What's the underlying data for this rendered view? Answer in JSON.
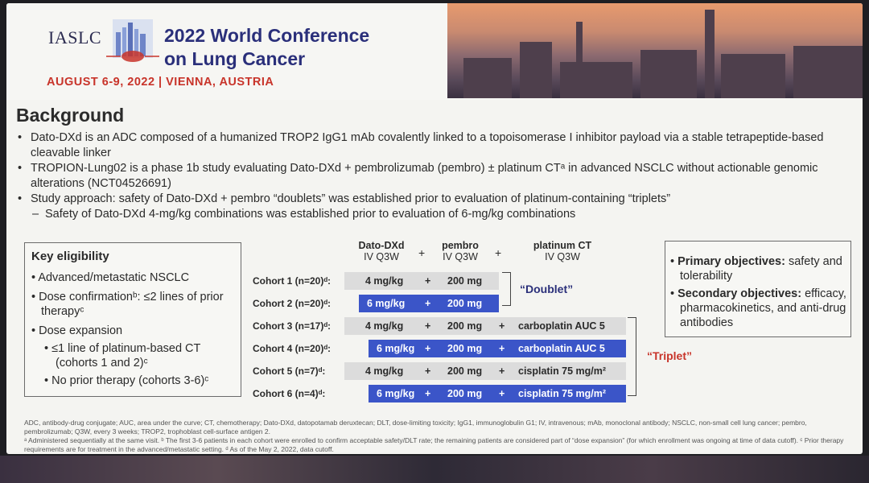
{
  "header": {
    "org": "IASLC",
    "title_line1": "2022 World Conference",
    "title_line2": "on Lung Cancer",
    "date_location": "AUGUST 6-9, 2022 | VIENNA, AUSTRIA",
    "logo_icon": "lung-icon",
    "colors": {
      "title": "#2a2f7a",
      "date": "#c8342a"
    }
  },
  "background": {
    "title": "Background",
    "bullets": [
      "Dato-DXd is an ADC composed of a humanized TROP2 IgG1 mAb covalently linked to a topoisomerase I inhibitor payload via a stable tetrapeptide-based cleavable linker",
      "TROPION-Lung02 is a phase 1b study evaluating Dato-DXd + pembrolizumab (pembro) ± platinum CTᵃ in advanced NSCLC without actionable genomic alterations (NCT04526691)",
      "Study approach: safety of Dato-DXd + pembro “doublets” was established prior to evaluation of platinum-containing “triplets”"
    ],
    "sub_bullet": "Safety of Dato-DXd 4-mg/kg combinations was established prior to evaluation of 6-mg/kg combinations"
  },
  "eligibility": {
    "title": "Key eligibility",
    "items": [
      "Advanced/metastatic NSCLC",
      "Dose confirmationᵇ: ≤2 lines of prior therapyᶜ",
      "Dose expansion"
    ],
    "sub_items": [
      "≤1 line of platinum-based CT (cohorts 1 and 2)ᶜ",
      "No prior therapy (cohorts 3-6)ᶜ"
    ]
  },
  "objectives": {
    "primary_label": "Primary objectives:",
    "primary_text": "safety and tolerability",
    "secondary_label": "Secondary objectives:",
    "secondary_text": "efficacy, pharmacokinetics, and anti-drug antibodies"
  },
  "table": {
    "headers": [
      {
        "name": "Dato-DXd",
        "sub": "IV Q3W"
      },
      {
        "name": "pembro",
        "sub": "IV Q3W"
      },
      {
        "name": "platinum CT",
        "sub": "IV Q3W"
      }
    ],
    "plus": "+",
    "rows": [
      {
        "label": "Cohort 1 (n=20)ᵈ:",
        "dato": "4 mg/kg",
        "pembro": "200 mg",
        "platinum": "",
        "highlight": false
      },
      {
        "label": "Cohort 2 (n=20)ᵈ:",
        "dato": "6 mg/kg",
        "pembro": "200 mg",
        "platinum": "",
        "highlight": true
      },
      {
        "label": "Cohort 3 (n=17)ᵈ:",
        "dato": "4 mg/kg",
        "pembro": "200 mg",
        "platinum": "carboplatin AUC 5",
        "highlight": false
      },
      {
        "label": "Cohort 4 (n=20)ᵈ:",
        "dato": "6 mg/kg",
        "pembro": "200 mg",
        "platinum": "carboplatin AUC 5",
        "highlight": true
      },
      {
        "label": "Cohort 5 (n=7)ᵈ:",
        "dato": "4 mg/kg",
        "pembro": "200 mg",
        "platinum": "cisplatin 75 mg/m²",
        "highlight": false
      },
      {
        "label": "Cohort 6 (n=4)ᵈ:",
        "dato": "6 mg/kg",
        "pembro": "200 mg",
        "platinum": "cisplatin 75 mg/m²",
        "highlight": true
      }
    ],
    "doublet_label": "“Doublet”",
    "triplet_label": "“Triplet”",
    "colors": {
      "highlight": "#3b55c8",
      "base": "#dcdcdc",
      "doublet": "#2a2f7a",
      "triplet": "#c8342a"
    }
  },
  "footnotes": {
    "line1": "ADC, antibody-drug conjugate; AUC, area under the curve; CT, chemotherapy; Dato-DXd, datopotamab deruxtecan; DLT, dose-limiting toxicity; IgG1, immunoglobulin G1; IV, intravenous; mAb, monoclonal antibody; NSCLC, non-small cell lung cancer; pembro, pembrolizumab; Q3W, every 3 weeks; TROP2, trophoblast cell-surface antigen 2.",
    "line2": "ᵃ Administered sequentially at the same visit. ᵇ The first 3-6 patients in each cohort were enrolled to confirm acceptable safety/DLT rate; the remaining patients are considered part of “dose expansion” (for which enrollment was ongoing at time of data cutoff). ᶜ Prior therapy requirements are for treatment in the advanced/metastatic setting. ᵈ As of the May 2, 2022, data cutoff."
  }
}
